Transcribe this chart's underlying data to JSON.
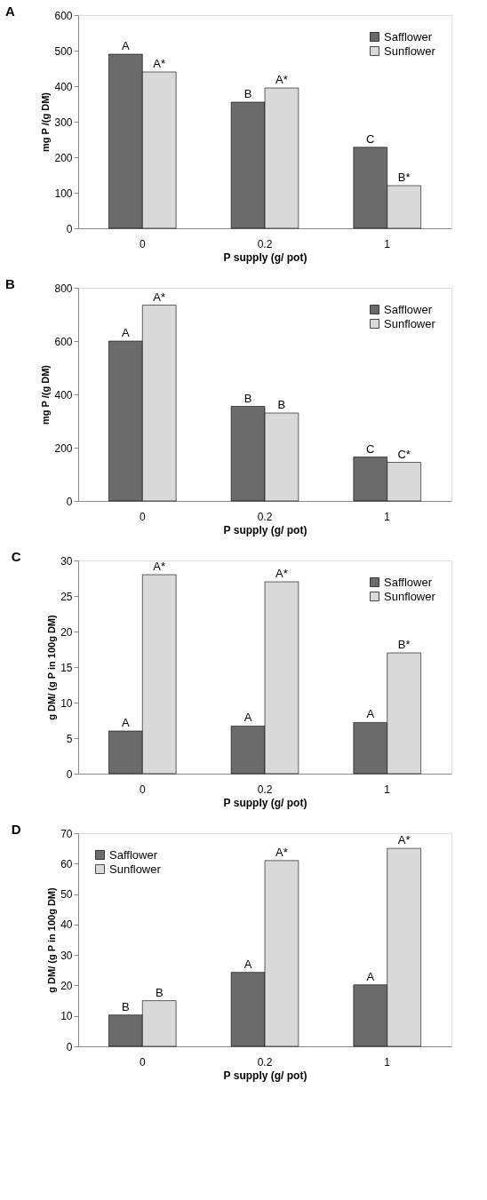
{
  "chart_data": [
    {
      "type": "bar",
      "title": "A",
      "xlabel": "P supply (g/ pot)",
      "ylabel": "mg  P /(g DM)",
      "categories": [
        "0",
        "0.2",
        "1"
      ],
      "ylim": [
        0,
        600
      ],
      "yticks": [
        0,
        100,
        200,
        300,
        400,
        500,
        600
      ],
      "grid": false,
      "legend": "top right",
      "series": [
        {
          "name": "Safflower",
          "color": "#6b6b6b",
          "values": [
            490,
            355,
            228
          ],
          "value_labels": [
            "A",
            "B",
            "C"
          ]
        },
        {
          "name": "Sunflower",
          "color": "#d9d9d9",
          "values": [
            440,
            395,
            120
          ],
          "value_labels": [
            "A*",
            "A*",
            "B*"
          ]
        }
      ]
    },
    {
      "type": "bar",
      "title": "B",
      "xlabel": "P supply (g/ pot)",
      "ylabel": "mg  P /(g DM)",
      "categories": [
        "0",
        "0.2",
        "1"
      ],
      "ylim": [
        0,
        800
      ],
      "yticks": [
        0,
        200,
        400,
        600,
        800
      ],
      "grid": false,
      "legend": "top right",
      "series": [
        {
          "name": "Safflower",
          "color": "#6b6b6b",
          "values": [
            600,
            355,
            165
          ],
          "value_labels": [
            "A",
            "B",
            "C"
          ]
        },
        {
          "name": "Sunflower",
          "color": "#d9d9d9",
          "values": [
            735,
            330,
            145
          ],
          "value_labels": [
            "A*",
            "B",
            "C*"
          ]
        }
      ]
    },
    {
      "type": "bar",
      "title": "C",
      "xlabel": "P supply (g/ pot)",
      "ylabel": "g DM/ (g P in 100g DM)",
      "categories": [
        "0",
        "0.2",
        "1"
      ],
      "ylim": [
        0,
        30
      ],
      "yticks": [
        0,
        5,
        10,
        15,
        20,
        25,
        30
      ],
      "grid": false,
      "legend": "top right",
      "series": [
        {
          "name": "Safflower",
          "color": "#6b6b6b",
          "values": [
            6,
            6.7,
            7.2
          ],
          "value_labels": [
            "A",
            "A",
            "A"
          ]
        },
        {
          "name": "Sunflower",
          "color": "#d9d9d9",
          "values": [
            28,
            27,
            17
          ],
          "value_labels": [
            "A*",
            "A*",
            "B*"
          ]
        }
      ]
    },
    {
      "type": "bar",
      "title": "D",
      "xlabel": "P supply (g/ pot)",
      "ylabel": "g DM/ (g P in 100g DM)",
      "categories": [
        "0",
        "0.2",
        "1"
      ],
      "ylim": [
        0,
        70
      ],
      "yticks": [
        0,
        10,
        20,
        30,
        40,
        50,
        60,
        70
      ],
      "grid": false,
      "legend": "top left",
      "series": [
        {
          "name": "Safflower",
          "color": "#6b6b6b",
          "values": [
            10.3,
            24.3,
            20.2
          ],
          "value_labels": [
            "B",
            "A",
            "A"
          ]
        },
        {
          "name": "Sunflower",
          "color": "#d9d9d9",
          "values": [
            15,
            61,
            65
          ],
          "value_labels": [
            "B",
            "A*",
            "A*"
          ]
        }
      ]
    }
  ]
}
